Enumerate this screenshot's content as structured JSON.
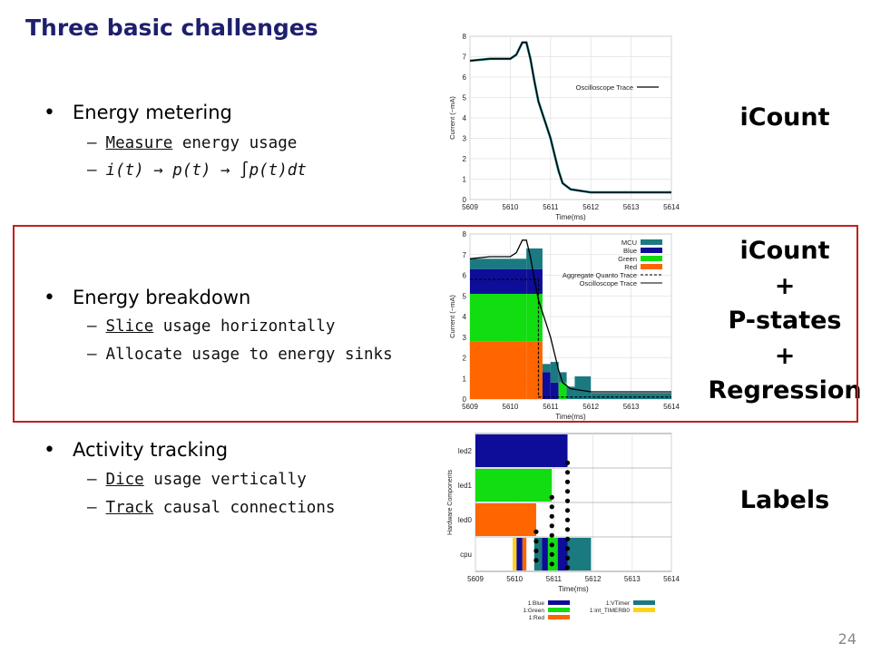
{
  "slide": {
    "title": "Three basic challenges",
    "page_number": "24"
  },
  "sections": [
    {
      "heading": "Energy metering",
      "subs": [
        {
          "underlined": "Measure",
          "rest": " energy usage"
        },
        {
          "formula": "i(t) → p(t) → ∫p(t)dt"
        }
      ]
    },
    {
      "heading": "Energy breakdown",
      "subs": [
        {
          "underlined": "Slice",
          "rest": " usage horizontally"
        },
        {
          "underlined": "",
          "rest": "Allocate usage to energy sinks"
        }
      ]
    },
    {
      "heading": "Activity tracking",
      "subs": [
        {
          "underlined": "Dice",
          "rest": " usage vertically"
        },
        {
          "underlined": "Track",
          "rest": " causal connections"
        }
      ]
    }
  ],
  "labels": {
    "icount": "iCount",
    "combo": [
      "iCount",
      "+",
      "P-states",
      "+",
      "Regression"
    ],
    "labels": "Labels"
  },
  "colors": {
    "title": "#1f1f6e",
    "box": "#c0201e",
    "mcu": "#1a7a80",
    "blue": "#0d0d9a",
    "green": "#11dd11",
    "red": "#ff6600",
    "yellow": "#ffd21a"
  },
  "chart_data": [
    {
      "type": "line",
      "xlabel": "Time(ms)",
      "ylabel": "Current (~mA)",
      "x_ticks": [
        "5609",
        "5610",
        "5611",
        "5612",
        "5613",
        "5614"
      ],
      "y_ticks": [
        "0",
        "1",
        "2",
        "3",
        "4",
        "5",
        "6",
        "7",
        "8"
      ],
      "xlim": [
        5609,
        5614
      ],
      "ylim": [
        0,
        8
      ],
      "legend": [
        "Oscilloscope Trace"
      ],
      "legend_position": "top-right",
      "series": [
        {
          "name": "Oscilloscope Trace",
          "x": [
            5609,
            5609.5,
            5610,
            5610.15,
            5610.3,
            5610.4,
            5610.5,
            5610.6,
            5610.7,
            5610.8,
            5610.9,
            5611.0,
            5611.1,
            5611.2,
            5611.3,
            5611.5,
            5612,
            5613,
            5614
          ],
          "y": [
            6.8,
            6.9,
            6.9,
            7.1,
            7.7,
            7.7,
            6.9,
            5.8,
            4.8,
            4.2,
            3.6,
            3.0,
            2.2,
            1.4,
            0.8,
            0.5,
            0.35,
            0.35,
            0.35
          ]
        }
      ]
    },
    {
      "type": "bar",
      "xlabel": "Time(ms)",
      "ylabel": "Current (~mA)",
      "x_ticks": [
        "5609",
        "5610",
        "5611",
        "5612",
        "5613",
        "5614"
      ],
      "y_ticks": [
        "0",
        "1",
        "2",
        "3",
        "4",
        "5",
        "6",
        "7",
        "8"
      ],
      "xlim": [
        5609,
        5614
      ],
      "ylim": [
        0,
        8
      ],
      "legend": [
        "MCU",
        "Blue",
        "Green",
        "Red",
        "Aggregate Quanto Trace",
        "Oscilloscope Trace"
      ],
      "legend_position": "top-right",
      "stacked_bins": [
        {
          "x0": 5609,
          "x1": 5610.4,
          "red": 2.8,
          "green": 2.3,
          "blue": 1.2,
          "mcu": 0.5
        },
        {
          "x0": 5610.4,
          "x1": 5610.8,
          "red": 2.8,
          "green": 2.3,
          "blue": 1.2,
          "mcu": 1.0
        },
        {
          "x0": 5610.8,
          "x1": 5611.0,
          "red": 0,
          "green": 0,
          "blue": 1.3,
          "mcu": 0.4
        },
        {
          "x0": 5611.0,
          "x1": 5611.2,
          "red": 0,
          "green": 0,
          "blue": 0.8,
          "mcu": 1.0
        },
        {
          "x0": 5611.2,
          "x1": 5611.4,
          "red": 0,
          "green": 0.8,
          "blue": 0,
          "mcu": 0.5
        },
        {
          "x0": 5611.4,
          "x1": 5611.6,
          "red": 0,
          "green": 0,
          "blue": 0,
          "mcu": 0.6
        },
        {
          "x0": 5611.6,
          "x1": 5612.0,
          "red": 0,
          "green": 0,
          "blue": 0,
          "mcu": 1.1
        },
        {
          "x0": 5612.0,
          "x1": 5614.0,
          "red": 0,
          "green": 0,
          "blue": 0,
          "mcu": 0.3
        }
      ]
    },
    {
      "type": "bar",
      "xlabel": "Time(ms)",
      "ylabel": "Hardware Components",
      "x_ticks": [
        "5609",
        "5610",
        "5611",
        "5612",
        "5613",
        "5614"
      ],
      "y_ticks": [
        "led2",
        "led1",
        "led0",
        "cpu"
      ],
      "xlim": [
        5609,
        5614
      ],
      "legend": [
        "1:Blue",
        "1:Green",
        "1:Red",
        "1:VTimer",
        "1:int_TIMERB0"
      ],
      "legend_position": "bottom",
      "rows": [
        {
          "name": "led2",
          "spans": [
            {
              "x0": 5609,
              "x1": 5611.35,
              "color": "blue"
            }
          ]
        },
        {
          "name": "led1",
          "spans": [
            {
              "x0": 5609,
              "x1": 5610.95,
              "color": "green"
            }
          ]
        },
        {
          "name": "led0",
          "spans": [
            {
              "x0": 5609,
              "x1": 5610.55,
              "color": "red"
            }
          ]
        },
        {
          "name": "cpu",
          "spans": [
            {
              "x0": 5609.95,
              "x1": 5610.05,
              "color": "yellow"
            },
            {
              "x0": 5610.05,
              "x1": 5610.2,
              "color": "blue"
            },
            {
              "x0": 5610.2,
              "x1": 5610.3,
              "color": "red"
            },
            {
              "x0": 5610.5,
              "x1": 5610.7,
              "color": "mcu"
            },
            {
              "x0": 5610.7,
              "x1": 5610.85,
              "color": "blue"
            },
            {
              "x0": 5610.85,
              "x1": 5611.1,
              "color": "green"
            },
            {
              "x0": 5611.1,
              "x1": 5611.35,
              "color": "blue"
            },
            {
              "x0": 5611.35,
              "x1": 5611.95,
              "color": "mcu"
            }
          ]
        }
      ],
      "dot_columns": [
        5610.55,
        5610.95,
        5611.35
      ]
    }
  ]
}
